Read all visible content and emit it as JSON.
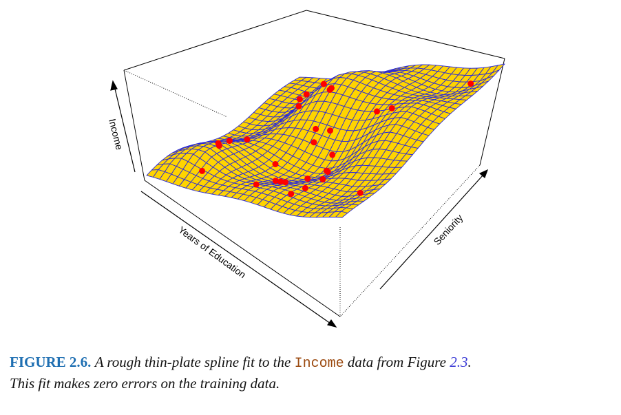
{
  "figure": {
    "axis_labels": {
      "z": "Income",
      "x": "Years of Education",
      "y": "Seniority"
    },
    "colors": {
      "surface_fill": "#ffd400",
      "mesh_lines": "#2a2ad8",
      "points": "#ff0000",
      "box": "#000000"
    },
    "surface": "rough thin-plate spline fit (perspective mesh)",
    "point_count": 30
  },
  "caption": {
    "label": "FIGURE 2.6.",
    "text_before": "A rough thin-plate spline fit to the",
    "code": "Income",
    "text_middle": "data from Figure",
    "ref": "2.3",
    "text_after": ".",
    "line2": "This fit makes zero errors on the training data."
  }
}
